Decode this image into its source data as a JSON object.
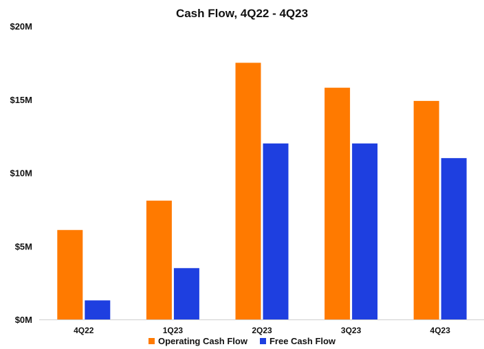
{
  "chart_data": {
    "type": "bar",
    "title": "Cash Flow, 4Q22 - 4Q23",
    "xlabel": "",
    "ylabel": "",
    "categories": [
      "4Q22",
      "1Q23",
      "2Q23",
      "3Q23",
      "4Q23"
    ],
    "series": [
      {
        "name": "Operating Cash Flow",
        "color": "#FF7A00",
        "values": [
          6.1,
          8.1,
          17.5,
          15.8,
          14.9
        ]
      },
      {
        "name": "Free Cash Flow",
        "color": "#1E3FE0",
        "values": [
          1.3,
          3.5,
          12.0,
          12.0,
          11.0
        ]
      }
    ],
    "ylim": [
      0,
      20
    ],
    "yticks": [
      {
        "value": 0,
        "label": "$0M"
      },
      {
        "value": 5,
        "label": "$5M"
      },
      {
        "value": 10,
        "label": "$10M"
      },
      {
        "value": 15,
        "label": "$15M"
      },
      {
        "value": 20,
        "label": "$20M"
      }
    ],
    "grid": false,
    "legend_position": "bottom"
  }
}
